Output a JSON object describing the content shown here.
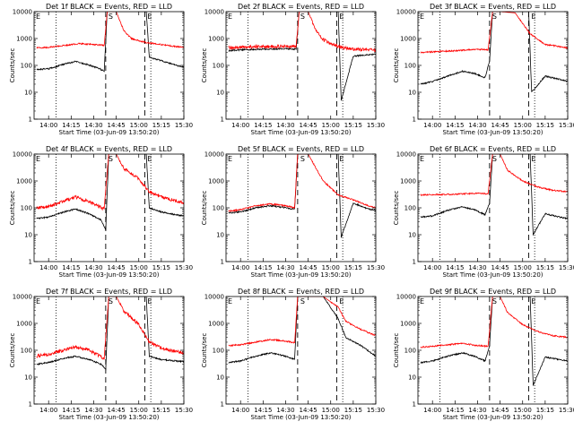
{
  "figure": {
    "background": "#ffffff",
    "events_color": "#000000",
    "lld_color": "#ff0000"
  },
  "chart_data": [
    {
      "type": "line",
      "title": "Det 1f BLACK = Events, RED = LLD",
      "xlabel": "Start Time (03-Jun-09 13:50:20)",
      "ylabel": "Counts/sec",
      "yscale": "log",
      "ylim": [
        1,
        10000
      ],
      "xlim": [
        "13:50:20",
        "15:30:00"
      ],
      "x_ticks": [
        "14:00",
        "14:15",
        "14:30",
        "14:45",
        "15:00",
        "15:15",
        "15:30"
      ],
      "y_ticks": [
        "1",
        "10",
        "100",
        "1000",
        "10000"
      ],
      "dotted_lines": [
        "14:05",
        "15:08"
      ],
      "dashed_lines": [
        "14:38",
        "15:04"
      ],
      "marker_labels": [
        "E",
        "S",
        "E"
      ],
      "series": [
        {
          "name": "Events",
          "color": "#000000",
          "x": [
            "13:52",
            "14:00",
            "14:10",
            "14:18",
            "14:25",
            "14:33",
            "14:37",
            "14:39",
            "14:45",
            "14:55",
            "15:05",
            "15:07",
            "15:15",
            "15:25",
            "15:30"
          ],
          "values": [
            70,
            75,
            110,
            140,
            110,
            80,
            60,
            10000,
            10000,
            10000,
            10000,
            200,
            150,
            100,
            85
          ]
        },
        {
          "name": "LLD",
          "color": "#ff0000",
          "x": [
            "13:52",
            "14:00",
            "14:10",
            "14:20",
            "14:30",
            "14:37",
            "14:39",
            "14:45",
            "14:50",
            "14:55",
            "15:05",
            "15:15",
            "15:25",
            "15:30"
          ],
          "values": [
            450,
            470,
            550,
            650,
            600,
            550,
            10000,
            10000,
            2000,
            1000,
            700,
            600,
            500,
            480
          ]
        }
      ]
    },
    {
      "type": "line",
      "title": "Det 2f BLACK = Events, RED = LLD",
      "xlabel": "Start Time (03-Jun-09 13:50:20)",
      "ylabel": "Counts/sec",
      "yscale": "log",
      "ylim": [
        1,
        10000
      ],
      "xlim": [
        "13:50:20",
        "15:30:00"
      ],
      "x_ticks": [
        "14:00",
        "14:15",
        "14:30",
        "14:45",
        "15:00",
        "15:15",
        "15:30"
      ],
      "y_ticks": [
        "1",
        "10",
        "100",
        "1000",
        "10000"
      ],
      "dotted_lines": [
        "14:05",
        "15:08"
      ],
      "dashed_lines": [
        "14:38",
        "15:04"
      ],
      "marker_labels": [
        "E",
        "S",
        "E"
      ],
      "series": [
        {
          "name": "Events",
          "color": "#000000",
          "x": [
            "13:52",
            "14:00",
            "14:15",
            "14:30",
            "14:37",
            "14:39",
            "14:45",
            "14:55",
            "15:05",
            "15:07",
            "15:15",
            "15:25",
            "15:30"
          ],
          "values": [
            350,
            380,
            400,
            420,
            400,
            10000,
            10000,
            10000,
            10000,
            5,
            220,
            250,
            260
          ]
        },
        {
          "name": "LLD",
          "color": "#ff0000",
          "x": [
            "13:52",
            "14:00",
            "14:15",
            "14:30",
            "14:37",
            "14:39",
            "14:45",
            "14:50",
            "14:55",
            "15:05",
            "15:15",
            "15:25",
            "15:30"
          ],
          "values": [
            450,
            480,
            500,
            520,
            480,
            10000,
            10000,
            2000,
            900,
            500,
            400,
            380,
            370
          ]
        }
      ]
    },
    {
      "type": "line",
      "title": "Det 3f BLACK = Events, RED = LLD",
      "xlabel": "Start Time (03-Jun-09 13:50:20)",
      "ylabel": "Counts/sec",
      "yscale": "log",
      "ylim": [
        1,
        10000
      ],
      "xlim": [
        "13:50:20",
        "15:30:00"
      ],
      "x_ticks": [
        "14:00",
        "14:15",
        "14:30",
        "14:45",
        "15:00",
        "15:15",
        "15:30"
      ],
      "y_ticks": [
        "1",
        "10",
        "100",
        "1000",
        "10000"
      ],
      "dotted_lines": [
        "14:05",
        "15:08"
      ],
      "dashed_lines": [
        "14:38",
        "15:04"
      ],
      "marker_labels": [
        "E",
        "S",
        "E"
      ],
      "series": [
        {
          "name": "Events",
          "color": "#000000",
          "x": [
            "13:52",
            "14:00",
            "14:10",
            "14:20",
            "14:28",
            "14:35",
            "14:38",
            "14:40",
            "14:45",
            "14:55",
            "15:04",
            "15:06",
            "15:15",
            "15:25",
            "15:30"
          ],
          "values": [
            20,
            25,
            40,
            60,
            50,
            35,
            150,
            10000,
            10000,
            10000,
            10000,
            10,
            40,
            30,
            25
          ]
        },
        {
          "name": "LLD",
          "color": "#ff0000",
          "x": [
            "13:52",
            "14:00",
            "14:15",
            "14:30",
            "14:37",
            "14:40",
            "14:45",
            "14:55",
            "15:05",
            "15:15",
            "15:25",
            "15:30"
          ],
          "values": [
            300,
            320,
            350,
            400,
            380,
            10000,
            10000,
            9000,
            1500,
            600,
            500,
            450
          ]
        }
      ]
    },
    {
      "type": "line",
      "title": "Det 4f BLACK = Events, RED = LLD",
      "xlabel": "Start Time (03-Jun-09 13:50:20)",
      "ylabel": "Counts/sec",
      "yscale": "log",
      "ylim": [
        1,
        10000
      ],
      "xlim": [
        "13:50:20",
        "15:30:00"
      ],
      "x_ticks": [
        "14:00",
        "14:15",
        "14:30",
        "14:45",
        "15:00",
        "15:15",
        "15:30"
      ],
      "y_ticks": [
        "1",
        "10",
        "100",
        "1000",
        "10000"
      ],
      "dotted_lines": [
        "14:05",
        "15:08"
      ],
      "dashed_lines": [
        "14:38",
        "15:04"
      ],
      "marker_labels": [
        "E",
        "S",
        "E"
      ],
      "series": [
        {
          "name": "Events",
          "color": "#000000",
          "x": [
            "13:52",
            "14:00",
            "14:10",
            "14:18",
            "14:27",
            "14:35",
            "14:38",
            "14:40",
            "14:45",
            "14:55",
            "15:05",
            "15:07",
            "15:15",
            "15:25",
            "15:30"
          ],
          "values": [
            40,
            45,
            70,
            90,
            60,
            35,
            15,
            10000,
            10000,
            10000,
            10000,
            100,
            70,
            55,
            50
          ]
        },
        {
          "name": "LLD",
          "color": "#ff0000",
          "x": [
            "13:52",
            "14:00",
            "14:10",
            "14:18",
            "14:27",
            "14:37",
            "14:40",
            "14:45",
            "14:50",
            "15:00",
            "15:07",
            "15:15",
            "15:25",
            "15:30"
          ],
          "values": [
            100,
            110,
            180,
            250,
            170,
            90,
            10000,
            10000,
            3000,
            1200,
            400,
            250,
            180,
            150
          ]
        }
      ]
    },
    {
      "type": "line",
      "title": "Det 5f BLACK = Events, RED = LLD",
      "xlabel": "Start Time (03-Jun-09 13:50:20)",
      "ylabel": "Counts/sec",
      "yscale": "log",
      "ylim": [
        1,
        10000
      ],
      "xlim": [
        "13:50:20",
        "15:30:00"
      ],
      "x_ticks": [
        "14:00",
        "14:15",
        "14:30",
        "14:45",
        "15:00",
        "15:15",
        "15:30"
      ],
      "y_ticks": [
        "1",
        "10",
        "100",
        "1000",
        "10000"
      ],
      "dotted_lines": [
        "14:05",
        "15:08"
      ],
      "dashed_lines": [
        "14:38",
        "15:04"
      ],
      "marker_labels": [
        "E",
        "S",
        "E"
      ],
      "series": [
        {
          "name": "Events",
          "color": "#000000",
          "x": [
            "13:52",
            "14:00",
            "14:10",
            "14:20",
            "14:30",
            "14:36",
            "14:38",
            "14:45",
            "14:55",
            "15:05",
            "15:07",
            "15:15",
            "15:25",
            "15:30"
          ],
          "values": [
            65,
            70,
            100,
            120,
            100,
            90,
            10000,
            10000,
            10000,
            10000,
            8,
            150,
            90,
            80
          ]
        },
        {
          "name": "LLD",
          "color": "#ff0000",
          "x": [
            "13:52",
            "14:00",
            "14:10",
            "14:20",
            "14:30",
            "14:36",
            "14:38",
            "14:45",
            "14:55",
            "15:05",
            "15:15",
            "15:25",
            "15:30"
          ],
          "values": [
            75,
            85,
            120,
            140,
            120,
            100,
            10000,
            10000,
            1000,
            300,
            200,
            120,
            100
          ]
        }
      ]
    },
    {
      "type": "line",
      "title": "Det 6f BLACK = Events, RED = LLD",
      "xlabel": "Start Time (03-Jun-09 13:50:20)",
      "ylabel": "Counts/sec",
      "yscale": "log",
      "ylim": [
        1,
        10000
      ],
      "xlim": [
        "13:50:20",
        "15:30:00"
      ],
      "x_ticks": [
        "14:00",
        "14:15",
        "14:30",
        "14:45",
        "15:00",
        "15:15",
        "15:30"
      ],
      "y_ticks": [
        "1",
        "10",
        "100",
        "1000",
        "10000"
      ],
      "dotted_lines": [
        "14:05",
        "15:08"
      ],
      "dashed_lines": [
        "14:38",
        "15:04"
      ],
      "marker_labels": [
        "E",
        "S",
        "E"
      ],
      "series": [
        {
          "name": "Events",
          "color": "#000000",
          "x": [
            "13:52",
            "14:00",
            "14:10",
            "14:20",
            "14:28",
            "14:35",
            "14:38",
            "14:40",
            "14:45",
            "14:55",
            "15:05",
            "15:07",
            "15:15",
            "15:25",
            "15:30"
          ],
          "values": [
            45,
            50,
            80,
            110,
            85,
            55,
            150,
            10000,
            10000,
            10000,
            10000,
            10,
            60,
            45,
            40
          ]
        },
        {
          "name": "LLD",
          "color": "#ff0000",
          "x": [
            "13:52",
            "14:00",
            "14:15",
            "14:30",
            "14:37",
            "14:40",
            "14:45",
            "14:50",
            "15:00",
            "15:10",
            "15:20",
            "15:30"
          ],
          "values": [
            300,
            310,
            320,
            350,
            330,
            10000,
            10000,
            2500,
            1000,
            600,
            450,
            400
          ]
        }
      ]
    },
    {
      "type": "line",
      "title": "Det 7f BLACK = Events, RED = LLD",
      "xlabel": "Start Time (03-Jun-09 13:50:20)",
      "ylabel": "Counts/sec",
      "yscale": "log",
      "ylim": [
        1,
        10000
      ],
      "xlim": [
        "13:50:20",
        "15:30:00"
      ],
      "x_ticks": [
        "14:00",
        "14:15",
        "14:30",
        "14:45",
        "15:00",
        "15:15",
        "15:30"
      ],
      "y_ticks": [
        "1",
        "10",
        "100",
        "1000",
        "10000"
      ],
      "dotted_lines": [
        "14:05",
        "15:08"
      ],
      "dashed_lines": [
        "14:38",
        "15:04"
      ],
      "marker_labels": [
        "E",
        "S",
        "E"
      ],
      "series": [
        {
          "name": "Events",
          "color": "#000000",
          "x": [
            "13:52",
            "14:00",
            "14:10",
            "14:18",
            "14:27",
            "14:35",
            "14:38",
            "14:40",
            "14:45",
            "14:55",
            "15:05",
            "15:07",
            "15:15",
            "15:25",
            "15:30"
          ],
          "values": [
            30,
            35,
            50,
            60,
            45,
            30,
            20,
            10000,
            10000,
            10000,
            10000,
            60,
            45,
            40,
            38
          ]
        },
        {
          "name": "LLD",
          "color": "#ff0000",
          "x": [
            "13:52",
            "14:00",
            "14:10",
            "14:18",
            "14:27",
            "14:37",
            "14:40",
            "14:45",
            "14:50",
            "15:00",
            "15:07",
            "15:15",
            "15:25",
            "15:30"
          ],
          "values": [
            60,
            70,
            100,
            130,
            100,
            50,
            10000,
            10000,
            3000,
            900,
            200,
            120,
            90,
            80
          ]
        }
      ]
    },
    {
      "type": "line",
      "title": "Det 8f BLACK = Events, RED = LLD",
      "xlabel": "Start Time (03-Jun-09 13:50:20)",
      "ylabel": "Counts/sec",
      "yscale": "log",
      "ylim": [
        1,
        10000
      ],
      "xlim": [
        "13:50:20",
        "15:30:00"
      ],
      "x_ticks": [
        "14:00",
        "14:15",
        "14:30",
        "14:45",
        "15:00",
        "15:15",
        "15:30"
      ],
      "y_ticks": [
        "1",
        "10",
        "100",
        "1000",
        "10000"
      ],
      "dotted_lines": [
        "14:05",
        "15:08"
      ],
      "dashed_lines": [
        "14:38",
        "15:04"
      ],
      "marker_labels": [
        "E",
        "S",
        "E"
      ],
      "series": [
        {
          "name": "Events",
          "color": "#000000",
          "x": [
            "13:52",
            "14:00",
            "14:10",
            "14:20",
            "14:30",
            "14:36",
            "14:38",
            "14:45",
            "14:55",
            "15:05",
            "15:10",
            "15:20",
            "15:30"
          ],
          "values": [
            35,
            40,
            60,
            80,
            60,
            45,
            10000,
            10000,
            10000,
            1500,
            300,
            150,
            60
          ]
        },
        {
          "name": "LLD",
          "color": "#ff0000",
          "x": [
            "13:52",
            "14:00",
            "14:10",
            "14:20",
            "14:30",
            "14:36",
            "14:38",
            "14:45",
            "14:55",
            "15:05",
            "15:10",
            "15:20",
            "15:30"
          ],
          "values": [
            150,
            160,
            200,
            250,
            220,
            190,
            10000,
            10000,
            10000,
            4000,
            1200,
            600,
            350
          ]
        }
      ]
    },
    {
      "type": "line",
      "title": "Det 9f BLACK = Events, RED = LLD",
      "xlabel": "Start Time (03-Jun-09 13:50:20)",
      "ylabel": "Counts/sec",
      "yscale": "log",
      "ylim": [
        1,
        10000
      ],
      "xlim": [
        "13:50:20",
        "15:30:00"
      ],
      "x_ticks": [
        "14:00",
        "14:15",
        "14:30",
        "14:45",
        "15:00",
        "15:15",
        "15:30"
      ],
      "y_ticks": [
        "1",
        "10",
        "100",
        "1000",
        "10000"
      ],
      "dotted_lines": [
        "14:05",
        "15:08"
      ],
      "dashed_lines": [
        "14:38",
        "15:04"
      ],
      "marker_labels": [
        "E",
        "S",
        "E"
      ],
      "series": [
        {
          "name": "Events",
          "color": "#000000",
          "x": [
            "13:52",
            "14:00",
            "14:10",
            "14:20",
            "14:28",
            "14:35",
            "14:38",
            "14:40",
            "14:45",
            "14:55",
            "15:05",
            "15:07",
            "15:15",
            "15:25",
            "15:30"
          ],
          "values": [
            35,
            40,
            60,
            80,
            60,
            40,
            150,
            10000,
            10000,
            10000,
            10000,
            5,
            55,
            45,
            40
          ]
        },
        {
          "name": "LLD",
          "color": "#ff0000",
          "x": [
            "13:52",
            "14:00",
            "14:10",
            "14:20",
            "14:30",
            "14:37",
            "14:40",
            "14:45",
            "14:50",
            "15:00",
            "15:10",
            "15:20",
            "15:30"
          ],
          "values": [
            130,
            140,
            160,
            180,
            150,
            140,
            10000,
            10000,
            2500,
            900,
            500,
            350,
            300
          ]
        }
      ]
    }
  ]
}
